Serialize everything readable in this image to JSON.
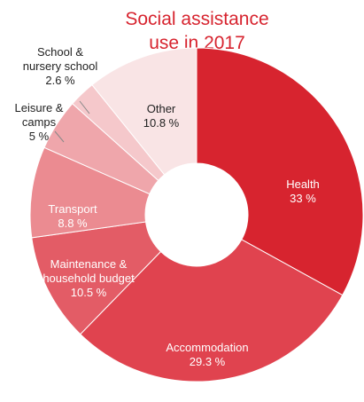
{
  "chart_data": {
    "type": "donut",
    "title": "Social assistance\nuse in 2017",
    "categories": [
      "Health",
      "Accommodation",
      "Maintenance &\nhousehold budget",
      "Transport",
      "Leisure &\ncamps",
      "School &\nnursery school",
      "Other"
    ],
    "values": [
      33,
      29.3,
      10.5,
      8.8,
      5,
      2.6,
      10.8
    ],
    "value_labels": [
      "33 %",
      "29.3 %",
      "10.5 %",
      "8.8 %",
      "5 %",
      "2.6 %",
      "10.8 %"
    ],
    "colors": [
      "#d7242f",
      "#e0434f",
      "#e35c66",
      "#eb8b91",
      "#efa6ab",
      "#f5c8cb",
      "#f9e4e5"
    ]
  }
}
